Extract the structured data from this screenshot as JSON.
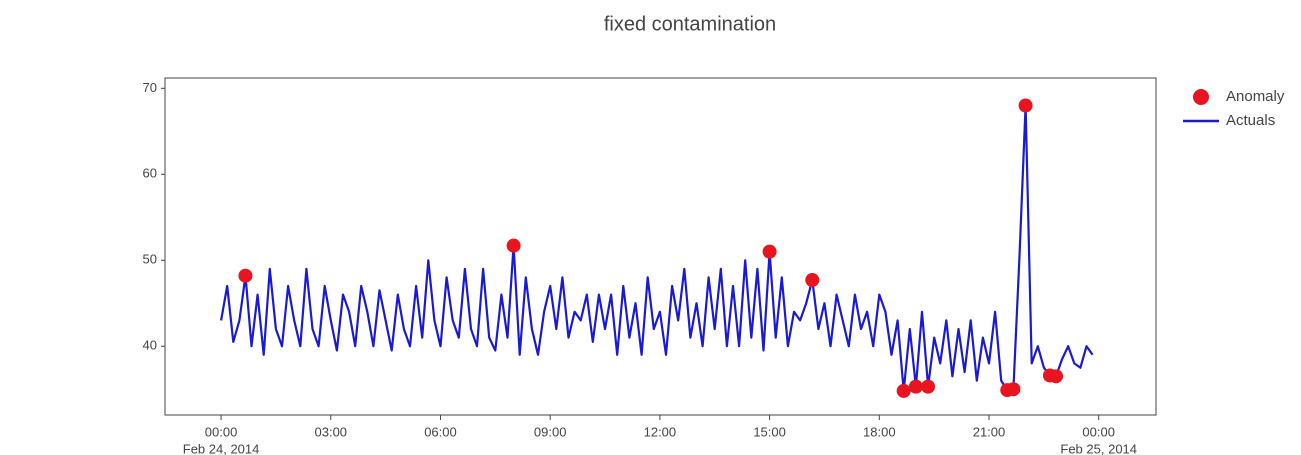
{
  "chart_data": {
    "type": "line",
    "title": "fixed contamination",
    "x": [
      "2014-02-24 00:00",
      "2014-02-24 00:10",
      "2014-02-24 00:20",
      "2014-02-24 00:30",
      "2014-02-24 00:40",
      "2014-02-24 00:50",
      "2014-02-24 01:00",
      "2014-02-24 01:10",
      "2014-02-24 01:20",
      "2014-02-24 01:30",
      "2014-02-24 01:40",
      "2014-02-24 01:50",
      "2014-02-24 02:00",
      "2014-02-24 02:10",
      "2014-02-24 02:20",
      "2014-02-24 02:30",
      "2014-02-24 02:40",
      "2014-02-24 02:50",
      "2014-02-24 03:00",
      "2014-02-24 03:10",
      "2014-02-24 03:20",
      "2014-02-24 03:30",
      "2014-02-24 03:40",
      "2014-02-24 03:50",
      "2014-02-24 04:00",
      "2014-02-24 04:10",
      "2014-02-24 04:20",
      "2014-02-24 04:30",
      "2014-02-24 04:40",
      "2014-02-24 04:50",
      "2014-02-24 05:00",
      "2014-02-24 05:10",
      "2014-02-24 05:20",
      "2014-02-24 05:30",
      "2014-02-24 05:40",
      "2014-02-24 05:50",
      "2014-02-24 06:00",
      "2014-02-24 06:10",
      "2014-02-24 06:20",
      "2014-02-24 06:30",
      "2014-02-24 06:40",
      "2014-02-24 06:50",
      "2014-02-24 07:00",
      "2014-02-24 07:10",
      "2014-02-24 07:20",
      "2014-02-24 07:30",
      "2014-02-24 07:40",
      "2014-02-24 07:50",
      "2014-02-24 08:00",
      "2014-02-24 08:10",
      "2014-02-24 08:20",
      "2014-02-24 08:30",
      "2014-02-24 08:40",
      "2014-02-24 08:50",
      "2014-02-24 09:00",
      "2014-02-24 09:10",
      "2014-02-24 09:20",
      "2014-02-24 09:30",
      "2014-02-24 09:40",
      "2014-02-24 09:50",
      "2014-02-24 10:00",
      "2014-02-24 10:10",
      "2014-02-24 10:20",
      "2014-02-24 10:30",
      "2014-02-24 10:40",
      "2014-02-24 10:50",
      "2014-02-24 11:00",
      "2014-02-24 11:10",
      "2014-02-24 11:20",
      "2014-02-24 11:30",
      "2014-02-24 11:40",
      "2014-02-24 11:50",
      "2014-02-24 12:00",
      "2014-02-24 12:10",
      "2014-02-24 12:20",
      "2014-02-24 12:30",
      "2014-02-24 12:40",
      "2014-02-24 12:50",
      "2014-02-24 13:00",
      "2014-02-24 13:10",
      "2014-02-24 13:20",
      "2014-02-24 13:30",
      "2014-02-24 13:40",
      "2014-02-24 13:50",
      "2014-02-24 14:00",
      "2014-02-24 14:10",
      "2014-02-24 14:20",
      "2014-02-24 14:30",
      "2014-02-24 14:40",
      "2014-02-24 14:50",
      "2014-02-24 15:00",
      "2014-02-24 15:10",
      "2014-02-24 15:20",
      "2014-02-24 15:30",
      "2014-02-24 15:40",
      "2014-02-24 15:50",
      "2014-02-24 16:00",
      "2014-02-24 16:10",
      "2014-02-24 16:20",
      "2014-02-24 16:30",
      "2014-02-24 16:40",
      "2014-02-24 16:50",
      "2014-02-24 17:00",
      "2014-02-24 17:10",
      "2014-02-24 17:20",
      "2014-02-24 17:30",
      "2014-02-24 17:40",
      "2014-02-24 17:50",
      "2014-02-24 18:00",
      "2014-02-24 18:10",
      "2014-02-24 18:20",
      "2014-02-24 18:30",
      "2014-02-24 18:40",
      "2014-02-24 18:50",
      "2014-02-24 19:00",
      "2014-02-24 19:10",
      "2014-02-24 19:20",
      "2014-02-24 19:30",
      "2014-02-24 19:40",
      "2014-02-24 19:50",
      "2014-02-24 20:00",
      "2014-02-24 20:10",
      "2014-02-24 20:20",
      "2014-02-24 20:30",
      "2014-02-24 20:40",
      "2014-02-24 20:50",
      "2014-02-24 21:00",
      "2014-02-24 21:10",
      "2014-02-24 21:20",
      "2014-02-24 21:30",
      "2014-02-24 21:40",
      "2014-02-24 21:50",
      "2014-02-24 22:00",
      "2014-02-24 22:10",
      "2014-02-24 22:20",
      "2014-02-24 22:30",
      "2014-02-24 22:40",
      "2014-02-24 22:50",
      "2014-02-24 23:00",
      "2014-02-24 23:10",
      "2014-02-24 23:20",
      "2014-02-24 23:30",
      "2014-02-24 23:40",
      "2014-02-24 23:50"
    ],
    "series": [
      {
        "name": "Anomaly",
        "color": "#e8141f",
        "mode": "markers",
        "x": [
          "2014-02-24 00:40",
          "2014-02-24 08:00",
          "2014-02-24 15:00",
          "2014-02-24 16:10",
          "2014-02-24 18:40",
          "2014-02-24 19:00",
          "2014-02-24 19:20",
          "2014-02-24 21:30",
          "2014-02-24 21:40",
          "2014-02-24 22:00",
          "2014-02-24 22:40",
          "2014-02-24 22:50"
        ],
        "values": [
          48.2,
          51.7,
          51,
          47.7,
          34.8,
          35.3,
          35.3,
          34.9,
          35,
          68,
          36.6,
          36.5
        ]
      },
      {
        "name": "Actuals",
        "color": "#1a1ad4",
        "mode": "lines",
        "values": [
          43,
          47,
          40.5,
          43,
          48.2,
          40,
          46,
          39,
          49,
          42,
          40,
          47,
          43,
          40,
          49,
          42,
          40,
          47,
          43,
          39.5,
          46,
          44,
          40,
          47,
          44,
          40,
          46.5,
          43,
          39.5,
          46,
          42,
          40,
          47,
          41,
          50,
          43,
          40,
          48,
          43,
          41,
          49,
          42,
          40,
          49,
          41,
          39.5,
          46,
          41,
          51.7,
          39,
          48,
          42,
          39,
          44,
          47,
          42,
          48,
          41,
          44,
          43,
          46,
          40.5,
          46,
          42,
          46,
          39,
          47,
          41,
          45,
          39,
          48,
          42,
          44,
          39,
          47,
          43,
          49,
          41,
          45,
          40,
          48,
          42,
          49,
          40,
          47,
          40,
          50,
          41,
          49,
          39.5,
          51,
          41,
          48,
          40,
          44,
          43,
          45,
          47.7,
          42,
          45,
          40,
          46,
          43,
          40,
          46,
          42,
          44,
          40,
          46,
          44,
          39,
          43,
          34.8,
          42,
          35.3,
          44,
          35.3,
          41,
          38,
          43,
          36.5,
          42,
          37,
          43,
          36,
          41,
          38,
          44,
          36,
          34.9,
          35,
          50.5,
          68,
          38,
          40,
          37.5,
          36.6,
          36.5,
          38.5,
          40,
          38,
          37.5,
          40,
          39
        ]
      }
    ],
    "xlim": [
      "2014-02-23 22:28",
      "2014-02-25 01:34"
    ],
    "xticks": [
      {
        "value": "2014-02-24 00:00",
        "label": [
          "00:00",
          "Feb 24, 2014"
        ]
      },
      {
        "value": "2014-02-24 03:00",
        "label": [
          "03:00"
        ]
      },
      {
        "value": "2014-02-24 06:00",
        "label": [
          "06:00"
        ]
      },
      {
        "value": "2014-02-24 09:00",
        "label": [
          "09:00"
        ]
      },
      {
        "value": "2014-02-24 12:00",
        "label": [
          "12:00"
        ]
      },
      {
        "value": "2014-02-24 15:00",
        "label": [
          "15:00"
        ]
      },
      {
        "value": "2014-02-24 18:00",
        "label": [
          "18:00"
        ]
      },
      {
        "value": "2014-02-24 21:00",
        "label": [
          "21:00"
        ]
      },
      {
        "value": "2014-02-25 00:00",
        "label": [
          "00:00",
          "Feb 25, 2014"
        ]
      }
    ],
    "ylim": [
      32,
      71.2
    ],
    "yticks": [
      40,
      50,
      60,
      70
    ],
    "grid": false,
    "legend": "top-right-outside"
  }
}
